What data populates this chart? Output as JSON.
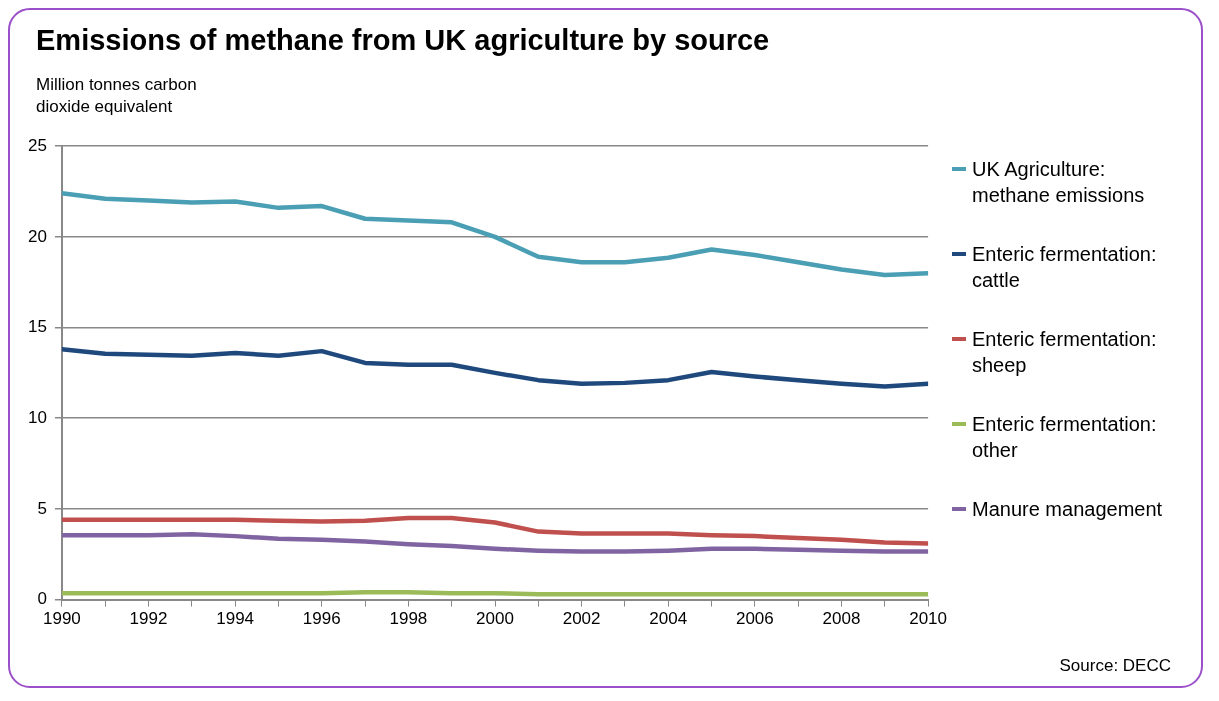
{
  "chart_data": {
    "type": "line",
    "title": "Emissions of methane from UK agriculture by source",
    "ylabel": "Million tonnes carbon dioxide equivalent",
    "x": [
      1990,
      1991,
      1992,
      1993,
      1994,
      1995,
      1996,
      1997,
      1998,
      1999,
      2000,
      2001,
      2002,
      2003,
      2004,
      2005,
      2006,
      2007,
      2008,
      2009,
      2010
    ],
    "series": [
      {
        "name": "UK Agriculture: methane emissions",
        "color": "#4a9fb5",
        "values": [
          22.4,
          22.1,
          22.0,
          21.9,
          21.95,
          21.6,
          21.7,
          21.0,
          20.9,
          20.8,
          20.0,
          18.9,
          18.6,
          18.6,
          18.85,
          19.3,
          19.0,
          18.6,
          18.2,
          17.9,
          18.0
        ]
      },
      {
        "name": "Enteric fermentation: cattle",
        "color": "#1f497d",
        "values": [
          13.8,
          13.55,
          13.5,
          13.45,
          13.6,
          13.45,
          13.7,
          13.05,
          12.95,
          12.95,
          12.5,
          12.1,
          11.9,
          11.95,
          12.1,
          12.55,
          12.3,
          12.1,
          11.9,
          11.75,
          11.9
        ]
      },
      {
        "name": "Enteric fermentation: sheep",
        "color": "#c0504d",
        "values": [
          4.4,
          4.4,
          4.4,
          4.4,
          4.4,
          4.35,
          4.3,
          4.35,
          4.5,
          4.5,
          4.25,
          3.75,
          3.65,
          3.65,
          3.65,
          3.55,
          3.5,
          3.4,
          3.3,
          3.15,
          3.1
        ]
      },
      {
        "name": "Enteric fermentation: other",
        "color": "#9bbb59",
        "values": [
          0.35,
          0.35,
          0.35,
          0.35,
          0.35,
          0.35,
          0.35,
          0.4,
          0.4,
          0.35,
          0.35,
          0.3,
          0.3,
          0.3,
          0.3,
          0.3,
          0.3,
          0.3,
          0.3,
          0.3,
          0.3
        ]
      },
      {
        "name": "Manure management",
        "color": "#8064a2",
        "values": [
          3.55,
          3.55,
          3.55,
          3.6,
          3.5,
          3.35,
          3.3,
          3.2,
          3.05,
          2.95,
          2.8,
          2.7,
          2.65,
          2.65,
          2.7,
          2.8,
          2.8,
          2.75,
          2.7,
          2.65,
          2.65
        ]
      }
    ],
    "xlim": [
      1990,
      2010
    ],
    "xticks": [
      1990,
      {
        "value": 1991,
        "label": null
      },
      1992,
      {
        "value": 1993,
        "label": null
      },
      1994,
      {
        "value": 1995,
        "label": null
      },
      1996,
      {
        "value": 1997,
        "label": null
      },
      1998,
      {
        "value": 1999,
        "label": null
      },
      2000,
      {
        "value": 2001,
        "label": null
      },
      2002,
      {
        "value": 2003,
        "label": null
      },
      2004,
      {
        "value": 2005,
        "label": null
      },
      2006,
      {
        "value": 2007,
        "label": null
      },
      2008,
      {
        "value": 2009,
        "label": null
      },
      2010
    ],
    "ylim": [
      0,
      25
    ],
    "yticks": [
      0,
      5,
      10,
      15,
      20,
      25
    ],
    "grid": "y",
    "legend": "right",
    "marker": "none",
    "line_style": "solid",
    "annotations": [
      "Source: DECC"
    ]
  }
}
